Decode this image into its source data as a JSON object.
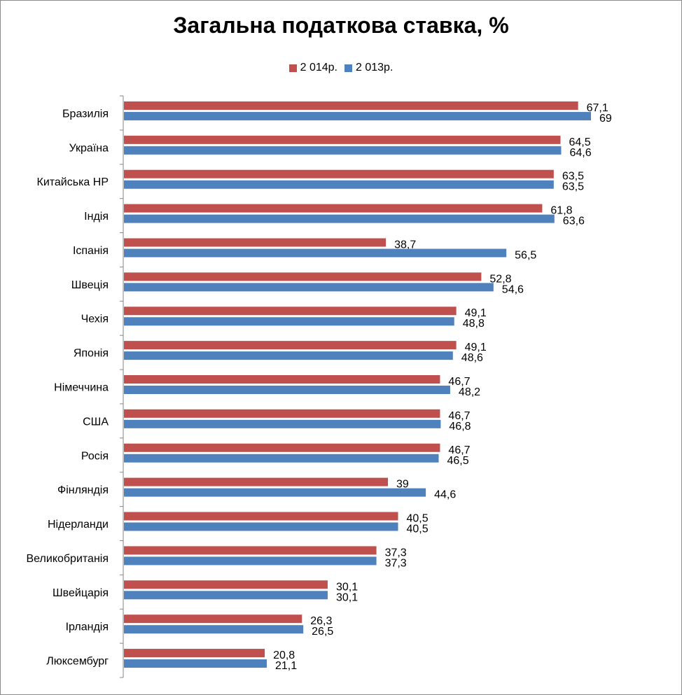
{
  "chart_data": {
    "type": "bar",
    "orientation": "horizontal",
    "title": "Загальна податкова ставка, %",
    "legend_position": "top",
    "grid": false,
    "xlim": [
      0,
      75
    ],
    "categories": [
      "Бразилія",
      "Україна",
      "Китайська НР",
      "Індія",
      "Іспанія",
      "Швеція",
      "Чехія",
      "Японія",
      "Німеччина",
      "США",
      "Росія",
      "Фінляндія",
      "Нідерланди",
      "Великобританія",
      "Швейцарія",
      "Ірландія",
      "Люксембург"
    ],
    "series": [
      {
        "name": "2 014р.",
        "color": "#c0504d",
        "values": [
          67.1,
          64.5,
          63.5,
          61.8,
          38.7,
          52.8,
          49.1,
          49.1,
          46.7,
          46.7,
          46.7,
          39,
          40.5,
          37.3,
          30.1,
          26.3,
          20.8
        ],
        "labels": [
          "67,1",
          "64,5",
          "63,5",
          "61,8",
          "38,7",
          "52,8",
          "49,1",
          "49,1",
          "46,7",
          "46,7",
          "46,7",
          "39",
          "40,5",
          "37,3",
          "30,1",
          "26,3",
          "20,8"
        ]
      },
      {
        "name": "2 013р.",
        "color": "#4f81bd",
        "values": [
          69,
          64.6,
          63.5,
          63.6,
          56.5,
          54.6,
          48.8,
          48.6,
          48.2,
          46.8,
          46.5,
          44.6,
          40.5,
          37.3,
          30.1,
          26.5,
          21.1
        ],
        "labels": [
          "69",
          "64,6",
          "63,5",
          "63,6",
          "56,5",
          "54,6",
          "48,8",
          "48,6",
          "48,2",
          "46,8",
          "46,5",
          "44,6",
          "40,5",
          "37,3",
          "30,1",
          "26,5",
          "21,1"
        ]
      }
    ]
  }
}
